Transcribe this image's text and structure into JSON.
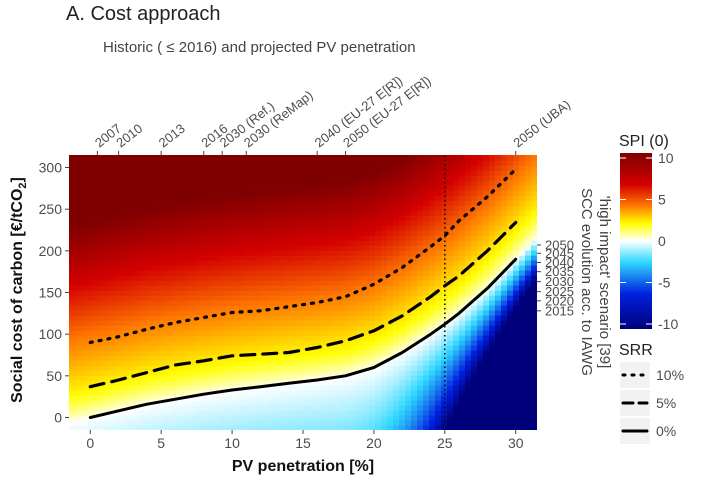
{
  "chart_data": {
    "type": "heatmap",
    "panel_label": "A. Cost approach",
    "subtitle": "Historic ( ≤ 2016) and projected PV penetration",
    "xlabel": "PV penetration [%]",
    "ylabel_main": "Social cost of carbon [€/tCO",
    "ylabel_sub": "2",
    "ylabel_end": "]",
    "xlim": [
      -1.5,
      31.5
    ],
    "ylim": [
      -15,
      315
    ],
    "x_ticks": [
      0,
      5,
      10,
      15,
      20,
      25,
      30
    ],
    "x_tick_labels": [
      "0",
      "5",
      "10",
      "15",
      "20",
      "25",
      "30"
    ],
    "y_ticks": [
      0,
      50,
      100,
      150,
      200,
      250,
      300
    ],
    "y_tick_labels": [
      "0",
      "50",
      "100",
      "150",
      "200",
      "250",
      "300"
    ],
    "top_axis": [
      {
        "x": 0.5,
        "label": "2007"
      },
      {
        "x": 2.0,
        "label": "2010"
      },
      {
        "x": 5.0,
        "label": "2013"
      },
      {
        "x": 8.0,
        "label": "2016"
      },
      {
        "x": 9.3,
        "label": "2030 (Ref.)"
      },
      {
        "x": 11.0,
        "label": "2030 (ReMap)"
      },
      {
        "x": 16.0,
        "label": "2040 (EU-27 E[R])"
      },
      {
        "x": 18.0,
        "label": "2050 (EU-27 E[R])"
      },
      {
        "x": 30.0,
        "label": "2050 (UBA)"
      }
    ],
    "right_axis": {
      "title_line1": "SCC evolution acc. to IAWG",
      "title_line2": "'high impact' scenario [39]",
      "ticks": [
        {
          "y": 207,
          "label": "2050"
        },
        {
          "y": 197,
          "label": "2045"
        },
        {
          "y": 186,
          "label": "2040"
        },
        {
          "y": 175,
          "label": "2035"
        },
        {
          "y": 163,
          "label": "2030"
        },
        {
          "y": 151,
          "label": "2025"
        },
        {
          "y": 140,
          "label": "2020"
        },
        {
          "y": 128,
          "label": "2015"
        }
      ]
    },
    "vline": {
      "x": 25,
      "style": "dotted"
    },
    "series": [
      {
        "name": "10%",
        "style": "dotted",
        "x": [
          0,
          2,
          4,
          6,
          8,
          10,
          12,
          14,
          16,
          18,
          20,
          22,
          24,
          25,
          26,
          28,
          30
        ],
        "y": [
          90,
          97,
          106,
          114,
          120,
          126,
          128,
          133,
          138,
          145,
          160,
          180,
          205,
          218,
          236,
          265,
          298
        ]
      },
      {
        "name": "5%",
        "style": "dashed",
        "x": [
          0,
          2,
          4,
          6,
          8,
          10,
          12,
          14,
          16,
          18,
          20,
          22,
          24,
          25,
          26,
          28,
          30
        ],
        "y": [
          37,
          45,
          54,
          63,
          68,
          74,
          76,
          78,
          84,
          92,
          104,
          122,
          145,
          158,
          170,
          200,
          234
        ]
      },
      {
        "name": "0%",
        "style": "solid",
        "x": [
          0,
          2,
          4,
          6,
          8,
          10,
          12,
          14,
          16,
          18,
          20,
          22,
          24,
          25,
          26,
          28,
          30
        ],
        "y": [
          0,
          8,
          16,
          22,
          28,
          33,
          37,
          41,
          45,
          50,
          60,
          78,
          100,
          112,
          125,
          155,
          190
        ]
      }
    ],
    "legend_spi": {
      "title": "SPI (0)",
      "ticks": [
        10,
        5,
        0,
        -5,
        -10
      ],
      "tick_labels": [
        "10",
        "5",
        "0",
        "-5",
        "-10"
      ],
      "range": [
        -10,
        10
      ]
    },
    "legend_srr": {
      "title": "SRR",
      "items": [
        {
          "label": "10%",
          "style": "dotted"
        },
        {
          "label": "5%",
          "style": "dashed"
        },
        {
          "label": "0%",
          "style": "solid"
        }
      ]
    },
    "colors": {
      "dark_red": "#7f0000",
      "red": "#e01010",
      "orange": "#ff7a00",
      "yellow": "#ffff00",
      "white": "#ffffff",
      "cyan": "#30d8ff",
      "blue": "#0020e0",
      "navy": "#00007a"
    }
  }
}
